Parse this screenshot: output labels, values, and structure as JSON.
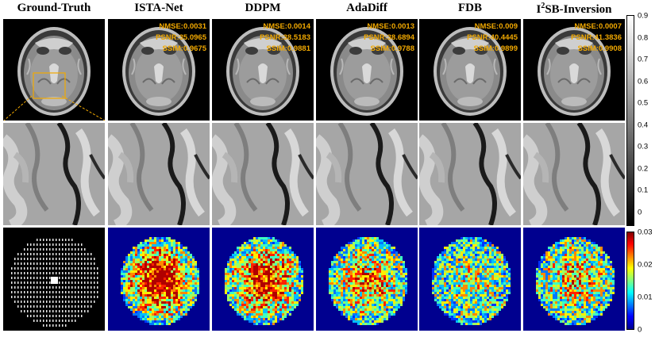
{
  "columns": [
    {
      "title": "Ground-Truth",
      "metrics": null
    },
    {
      "title": "ISTA-Net",
      "metrics": {
        "nmse": "NMSE:0.0031",
        "psnr": "PSNR:35.0965",
        "ssim": "SSIM:0.9675"
      }
    },
    {
      "title": "DDPM",
      "metrics": {
        "nmse": "NMSE:0.0014",
        "psnr": "PSNR:38.5183",
        "ssim": "SSIM:0.9881"
      }
    },
    {
      "title": "AdaDiff",
      "metrics": {
        "nmse": "NMSE:0.0013",
        "psnr": "PSNR:38.6894",
        "ssim": "SSIM:0.9788"
      }
    },
    {
      "title": "FDB",
      "metrics": {
        "nmse": "NMSE:0.009",
        "psnr": "PSNR:40.4445",
        "ssim": "SSIM:0.9899"
      }
    },
    {
      "title_main": "SB-Inversion",
      "title_sup": "2",
      "title_prefix": "I",
      "metrics": {
        "nmse": "NMSE:0.0007",
        "psnr": "PSNR:41.3836",
        "ssim": "SSIM:0.9908"
      }
    }
  ],
  "colorbar_gray": {
    "ticks": [
      "0.9",
      "0.8",
      "0.7",
      "0.6",
      "0.5",
      "0.4",
      "0.3",
      "0.2",
      "0.1",
      "0"
    ]
  },
  "colorbar_error": {
    "ticks": [
      "0.03",
      "0.02",
      "0.01",
      "0"
    ]
  },
  "colors": {
    "metric_text": "#f2a900",
    "zoom_box": "#f2a900"
  }
}
